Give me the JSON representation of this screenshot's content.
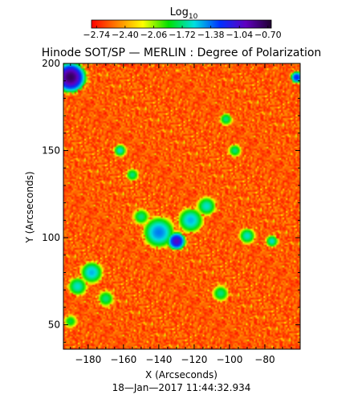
{
  "chart_data": {
    "type": "heatmap",
    "title": "Hinode SOT/SP — MERLIN : Degree of Polarization",
    "xlabel": "X (Arcseconds)",
    "ylabel": "Y (Arcseconds)",
    "timestamp": "18—Jan—2017 11:44:32.934",
    "xlim": [
      -194,
      -60
    ],
    "ylim": [
      36,
      200
    ],
    "x_ticks": [
      -180,
      -160,
      -140,
      -120,
      -100,
      -80
    ],
    "x_tick_labels": [
      "−180",
      "−160",
      "−140",
      "−120",
      "−100",
      "−80"
    ],
    "y_ticks": [
      50,
      100,
      150,
      200
    ],
    "y_tick_labels": [
      "50",
      "100",
      "150",
      "200"
    ],
    "colorbar": {
      "title_main": "Log",
      "title_sub": "10",
      "ticks": [
        -2.74,
        -2.4,
        -2.06,
        -1.72,
        -1.38,
        -1.04,
        -0.7
      ],
      "tick_labels": [
        "−2.74",
        "−2.40",
        "−2.06",
        "−1.72",
        "−1.38",
        "−1.04",
        "−0.70"
      ],
      "range": [
        -2.8,
        -0.66
      ],
      "colors": [
        "#ff0000",
        "#ff8000",
        "#ffff00",
        "#00e000",
        "#00e0e0",
        "#0030ff",
        "#6000c0",
        "#200030"
      ]
    },
    "background_range": [
      -2.74,
      -2.45
    ],
    "features": [
      {
        "x": -190,
        "y": 192,
        "r": 10,
        "peak": -0.75
      },
      {
        "x": -130,
        "y": 98,
        "r": 6,
        "peak": -1.0
      },
      {
        "x": -140,
        "y": 103,
        "r": 10,
        "peak": -1.4
      },
      {
        "x": -122,
        "y": 110,
        "r": 8,
        "peak": -1.5
      },
      {
        "x": -113,
        "y": 118,
        "r": 6,
        "peak": -1.6
      },
      {
        "x": -150,
        "y": 112,
        "r": 5,
        "peak": -1.7
      },
      {
        "x": -162,
        "y": 150,
        "r": 4,
        "peak": -1.6
      },
      {
        "x": -155,
        "y": 136,
        "r": 4,
        "peak": -1.7
      },
      {
        "x": -102,
        "y": 168,
        "r": 4,
        "peak": -1.7
      },
      {
        "x": -97,
        "y": 150,
        "r": 4,
        "peak": -1.7
      },
      {
        "x": -90,
        "y": 101,
        "r": 5,
        "peak": -1.6
      },
      {
        "x": -76,
        "y": 98,
        "r": 4,
        "peak": -1.6
      },
      {
        "x": -178,
        "y": 80,
        "r": 7,
        "peak": -1.5
      },
      {
        "x": -186,
        "y": 72,
        "r": 6,
        "peak": -1.6
      },
      {
        "x": -170,
        "y": 65,
        "r": 5,
        "peak": -1.7
      },
      {
        "x": -190,
        "y": 52,
        "r": 4,
        "peak": -1.8
      },
      {
        "x": -105,
        "y": 68,
        "r": 5,
        "peak": -1.7
      },
      {
        "x": -62,
        "y": 192,
        "r": 4,
        "peak": -1.2
      }
    ]
  }
}
